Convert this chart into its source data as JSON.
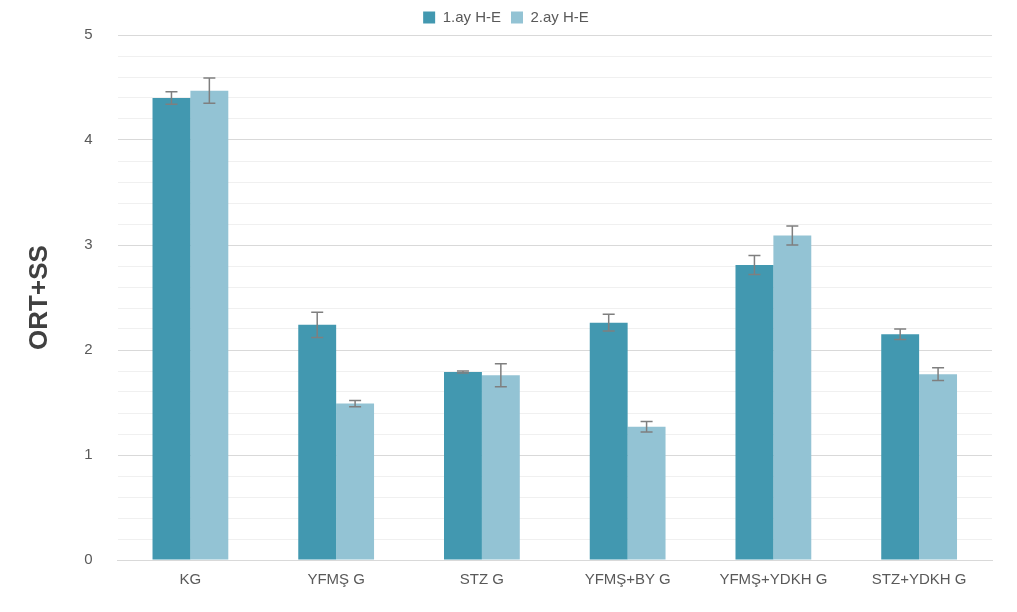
{
  "chart_data": {
    "type": "bar",
    "ylabel": "ORT+SS",
    "categories": [
      "KG",
      "YFMŞ G",
      "STZ G",
      "YFMŞ+BY G",
      "YFMŞ+YDKH G",
      "STZ+YDKH G"
    ],
    "series": [
      {
        "name": "1.ay H-E",
        "color": "#4298b0",
        "values": [
          4.4,
          2.24,
          1.79,
          2.26,
          2.81,
          2.15
        ],
        "errors": [
          0.06,
          0.12,
          0.01,
          0.08,
          0.09,
          0.05
        ]
      },
      {
        "name": "2.ay H-E",
        "color": "#93c3d4",
        "values": [
          4.47,
          1.49,
          1.76,
          1.27,
          3.09,
          1.77
        ],
        "errors": [
          0.12,
          0.03,
          0.11,
          0.05,
          0.09,
          0.06
        ]
      }
    ],
    "ylim": [
      0,
      5
    ],
    "yticks": [
      0,
      {
        "value": 0.2,
        "label": null
      },
      {
        "value": 0.4,
        "label": null
      },
      {
        "value": 0.6,
        "label": null
      },
      {
        "value": 0.8,
        "label": null
      },
      1,
      {
        "value": 1.2,
        "label": null
      },
      {
        "value": 1.4,
        "label": null
      },
      {
        "value": 1.6,
        "label": null
      },
      {
        "value": 1.8,
        "label": null
      },
      2,
      {
        "value": 2.2,
        "label": null
      },
      {
        "value": 2.4,
        "label": null
      },
      {
        "value": 2.6,
        "label": null
      },
      {
        "value": 2.8,
        "label": null
      },
      3,
      {
        "value": 3.2,
        "label": null
      },
      {
        "value": 3.4,
        "label": null
      },
      {
        "value": 3.6,
        "label": null
      },
      {
        "value": 3.8,
        "label": null
      },
      4,
      {
        "value": 4.2,
        "label": null
      },
      {
        "value": 4.4,
        "label": null
      },
      {
        "value": 4.6,
        "label": null
      },
      {
        "value": 4.8,
        "label": null
      },
      5
    ],
    "grid": "y",
    "legend": "top"
  }
}
